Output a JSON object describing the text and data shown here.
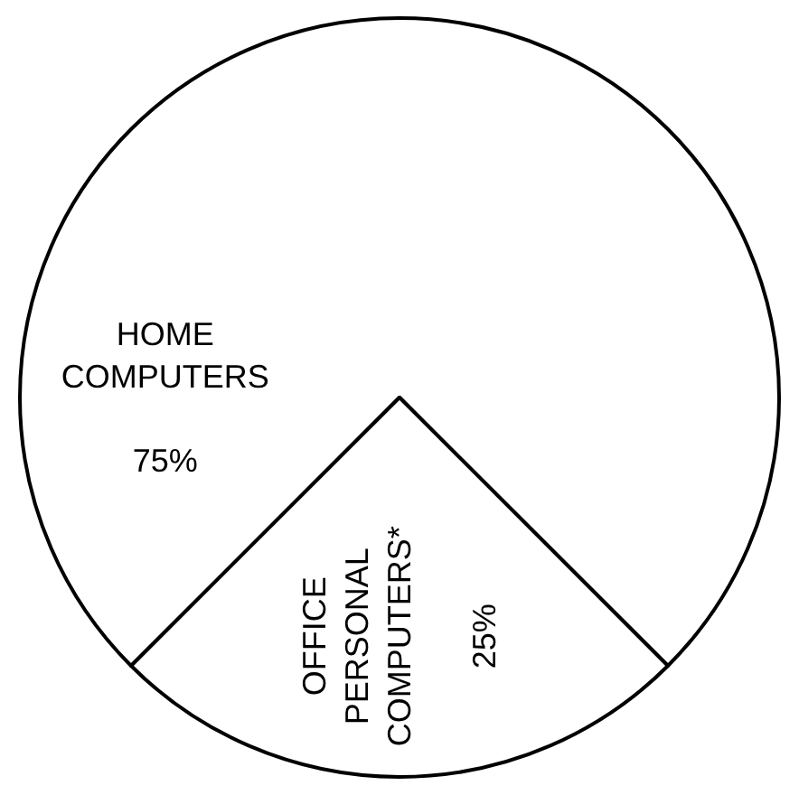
{
  "chart_data": {
    "type": "pie",
    "categories": [
      "HOME COMPUTERS",
      "OFFICE PERSONAL COMPUTERS*"
    ],
    "values": [
      75,
      25
    ],
    "value_labels": [
      "75%",
      "25%"
    ],
    "colors": [
      "#ffffff",
      "#ffffff"
    ],
    "legend": false
  }
}
